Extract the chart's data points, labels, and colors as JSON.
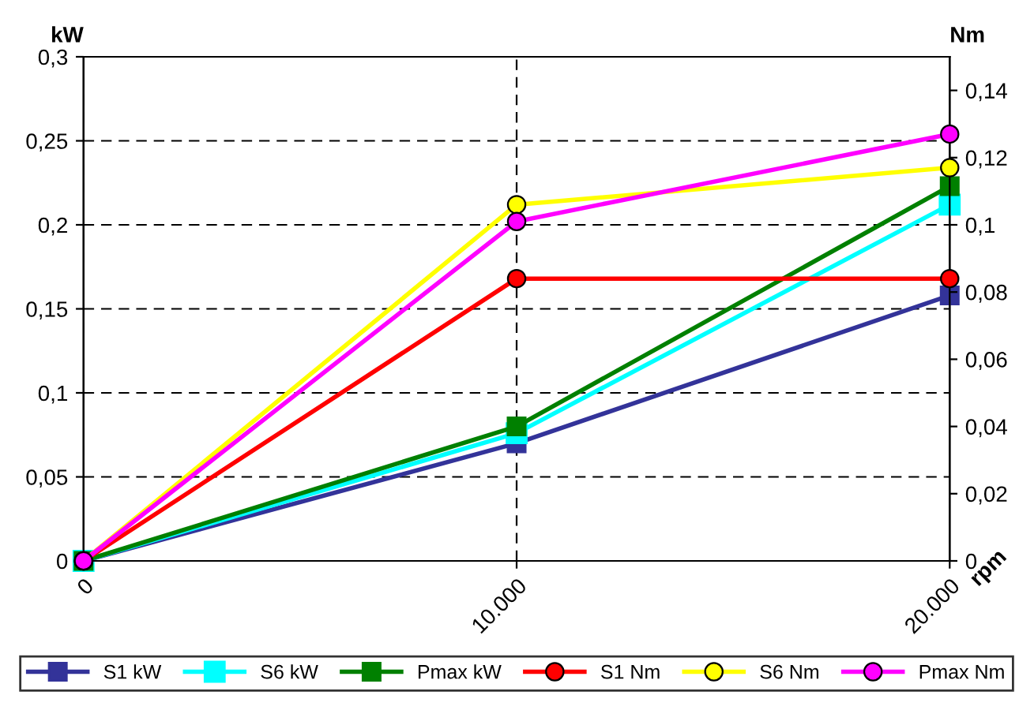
{
  "chart_data": {
    "type": "line",
    "xlabel": "rpm",
    "ylabel": "kW",
    "y2label": "Nm",
    "x": [
      0,
      10000,
      20000
    ],
    "xlim": [
      0,
      20000
    ],
    "xticks": [
      0,
      {
        "value": 10000,
        "label": "10.000"
      },
      {
        "value": 20000,
        "label": "20.000"
      }
    ],
    "ylim": [
      0,
      0.3
    ],
    "yticks": [
      0,
      {
        "value": 0.05,
        "label": "0,05"
      },
      {
        "value": 0.1,
        "label": "0,1"
      },
      {
        "value": 0.15,
        "label": "0,15"
      },
      {
        "value": 0.2,
        "label": "0,2"
      },
      {
        "value": 0.25,
        "label": "0,25"
      },
      {
        "value": 0.3,
        "label": "0,3"
      }
    ],
    "y2lim": [
      0,
      0.15
    ],
    "y2ticks": [
      0,
      {
        "value": 0.02,
        "label": "0,02"
      },
      {
        "value": 0.04,
        "label": "0,04"
      },
      {
        "value": 0.06,
        "label": "0,06"
      },
      {
        "value": 0.08,
        "label": "0,08"
      },
      {
        "value": 0.1,
        "label": "0,1"
      },
      {
        "value": 0.12,
        "label": "0,12"
      },
      {
        "value": 0.14,
        "label": "0,14"
      }
    ],
    "grid": true,
    "legend": "bottom",
    "line_style": "solid",
    "series": [
      {
        "name": "S1 kW",
        "color": "#333399",
        "marker": "square",
        "values": [
          0,
          0.07,
          0.158
        ]
      },
      {
        "name": "S6 kW",
        "color": "#00ffff",
        "marker": "square",
        "values": [
          0,
          0.076,
          0.212
        ]
      },
      {
        "name": "Pmax kW",
        "color": "#008000",
        "marker": "square",
        "values": [
          0,
          0.08,
          0.223
        ]
      },
      {
        "name": "S1 Nm",
        "color": "#ff0000",
        "marker": "circle",
        "axis": "y2",
        "values": [
          0,
          0.084,
          0.084
        ]
      },
      {
        "name": "S6 Nm",
        "color": "#ffff00",
        "marker": "circle",
        "axis": "y2",
        "values": [
          0,
          0.106,
          0.117
        ]
      },
      {
        "name": "Pmax Nm",
        "color": "#ff00ff",
        "marker": "circle",
        "axis": "y2",
        "values": [
          0,
          0.101,
          0.127
        ]
      }
    ]
  }
}
